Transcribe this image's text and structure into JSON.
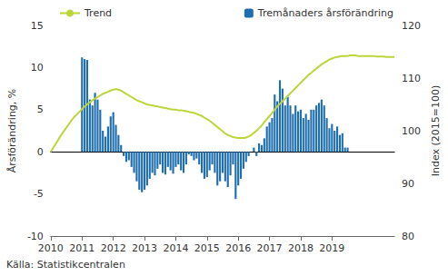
{
  "chart_data": {
    "type": "bar",
    "caption": "Källa: Statistikcentralen",
    "y_label": "Årsförändring, %",
    "y2_label": "Index (2015=100)",
    "categories": [
      "2010",
      null,
      null,
      null,
      null,
      null,
      null,
      null,
      null,
      null,
      null,
      null,
      "2011",
      null,
      null,
      null,
      null,
      null,
      null,
      null,
      null,
      null,
      null,
      null,
      "2012",
      null,
      null,
      null,
      null,
      null,
      null,
      null,
      null,
      null,
      null,
      null,
      "2013",
      null,
      null,
      null,
      null,
      null,
      null,
      null,
      null,
      null,
      null,
      null,
      "2014",
      null,
      null,
      null,
      null,
      null,
      null,
      null,
      null,
      null,
      null,
      null,
      "2015",
      null,
      null,
      null,
      null,
      null,
      null,
      null,
      null,
      null,
      null,
      null,
      "2016",
      null,
      null,
      null,
      null,
      null,
      null,
      null,
      null,
      null,
      null,
      null,
      "2017",
      null,
      null,
      null,
      null,
      null,
      null,
      null,
      null,
      null,
      null,
      null,
      "2018",
      null,
      null,
      null,
      null,
      null,
      null,
      null,
      null,
      null,
      null,
      null,
      "2019",
      null,
      null,
      null,
      null,
      null,
      null,
      null,
      null,
      null,
      null,
      null,
      null,
      null,
      null,
      null,
      null,
      null,
      null,
      null,
      null,
      null,
      null,
      null,
      null
    ],
    "ylim": [
      -10,
      15
    ],
    "yticks": [
      -10,
      -5,
      0,
      5,
      10,
      15
    ],
    "y2lim": [
      80,
      120
    ],
    "y2ticks": [
      80,
      90,
      100,
      110,
      120
    ],
    "grid": false,
    "legend": "top",
    "series": [
      {
        "name": "Trend",
        "type": "line",
        "axis": "y2",
        "color": "#bcd63a",
        "values": [
          96,
          96.8,
          97.6,
          98.4,
          99.2,
          99.9,
          100.6,
          101.3,
          102,
          102.6,
          103.1,
          103.6,
          104.1,
          104.6,
          105,
          105.4,
          105.8,
          106.1,
          106.4,
          106.7,
          107,
          107.2,
          107.4,
          107.6,
          107.8,
          107.9,
          107.8,
          107.6,
          107.3,
          107,
          106.7,
          106.4,
          106.1,
          105.8,
          105.6,
          105.4,
          105.2,
          105,
          104.9,
          104.8,
          104.7,
          104.6,
          104.5,
          104.4,
          104.3,
          104.2,
          104.1,
          104,
          104,
          103.9,
          103.9,
          103.8,
          103.7,
          103.6,
          103.5,
          103.4,
          103.2,
          103,
          102.8,
          102.5,
          102.2,
          101.9,
          101.5,
          101.1,
          100.7,
          100.3,
          99.9,
          99.5,
          99.2,
          99,
          98.8,
          98.7,
          98.6,
          98.6,
          98.6,
          98.7,
          98.9,
          99.2,
          99.6,
          100,
          100.5,
          101,
          101.6,
          102.2,
          102.8,
          103.4,
          104,
          104.6,
          105.1,
          105.6,
          106.1,
          106.6,
          107.1,
          107.6,
          108.1,
          108.6,
          109.1,
          109.6,
          110.1,
          110.6,
          111,
          111.4,
          111.8,
          112.2,
          112.6,
          112.9,
          113.2,
          113.5,
          113.7,
          113.9,
          114,
          114.1,
          114.2,
          114.2,
          114.2,
          114.3,
          114.3,
          114.3,
          114.2,
          114.2,
          114.2,
          114.2,
          114.2,
          114.2,
          114.2,
          114.1,
          114.1,
          114.1,
          114.1,
          114,
          114,
          114,
          114
        ]
      },
      {
        "name": "Tremånaders årsförändring",
        "type": "bar",
        "color": "#1f6fae",
        "values": [
          null,
          null,
          null,
          null,
          null,
          null,
          null,
          null,
          null,
          null,
          null,
          null,
          11.2,
          11,
          10.9,
          6.2,
          5.5,
          7,
          6.2,
          5,
          2.5,
          1.8,
          3,
          4.2,
          4.7,
          3.2,
          2,
          0.8,
          -0.5,
          -1.2,
          -1,
          -1.8,
          -2.5,
          -3.5,
          -4.5,
          -4.8,
          -4.5,
          -4,
          -3.2,
          -2.5,
          -2.8,
          -2,
          -1.5,
          -2.5,
          -2.7,
          -1.8,
          -2.2,
          -2.6,
          -1.8,
          -1.5,
          -2.2,
          -2.5,
          -1.5,
          -0.3,
          -0.5,
          -1,
          -0.8,
          -1.5,
          -2.5,
          -3.2,
          -3,
          -2.2,
          -1.5,
          -2.5,
          -4,
          -3.5,
          -2.5,
          -3.5,
          -4.2,
          -2.8,
          -1.5,
          -5.6,
          -4,
          -3.2,
          -2,
          -1.2,
          -0.5,
          0,
          0.5,
          -0.5,
          1,
          0.8,
          1.6,
          3,
          3.5,
          4,
          6.8,
          6,
          8.5,
          7.5,
          5.5,
          6.5,
          5.5,
          4.5,
          5.5,
          4.8,
          5,
          4,
          4.5,
          3.8,
          5,
          5,
          5.5,
          5.8,
          6.2,
          5.5,
          4,
          2.8,
          3.3,
          2.5,
          3,
          2,
          2.2,
          0.5,
          0.5,
          null,
          null,
          null,
          null,
          null,
          null,
          null,
          null,
          null,
          null,
          null,
          null,
          null,
          null,
          null,
          null,
          null,
          null
        ]
      }
    ]
  }
}
